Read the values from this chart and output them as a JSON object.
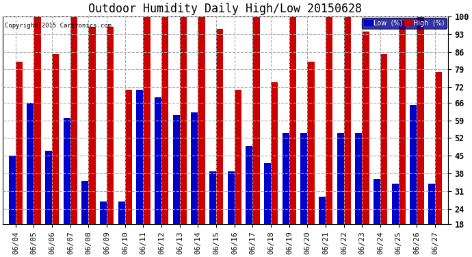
{
  "title": "Outdoor Humidity Daily High/Low 20150628",
  "copyright": "Copyright 2015 Cartronics.com",
  "dates": [
    "06/04",
    "06/05",
    "06/06",
    "06/07",
    "06/08",
    "06/09",
    "06/10",
    "06/11",
    "06/12",
    "06/13",
    "06/14",
    "06/15",
    "06/16",
    "06/17",
    "06/18",
    "06/19",
    "06/20",
    "06/21",
    "06/22",
    "06/23",
    "06/24",
    "06/25",
    "06/26",
    "06/27"
  ],
  "lows": [
    45,
    66,
    47,
    60,
    35,
    27,
    27,
    71,
    68,
    61,
    62,
    39,
    39,
    49,
    42,
    54,
    54,
    29,
    54,
    54,
    36,
    34,
    65,
    34
  ],
  "highs": [
    82,
    100,
    85,
    100,
    96,
    96,
    71,
    100,
    100,
    100,
    100,
    95,
    71,
    100,
    74,
    100,
    82,
    100,
    100,
    94,
    85,
    98,
    100,
    78
  ],
  "low_color": "#0000cc",
  "high_color": "#cc0000",
  "bg_color": "#ffffff",
  "grid_color": "#aaaaaa",
  "ylim_min": 18,
  "ylim_max": 100,
  "yticks": [
    18,
    24,
    31,
    38,
    45,
    52,
    59,
    66,
    72,
    79,
    86,
    93,
    100
  ],
  "bar_width": 0.38,
  "title_fontsize": 12,
  "tick_fontsize": 8,
  "legend_labels": [
    "Low  (%)",
    "High  (%)"
  ]
}
